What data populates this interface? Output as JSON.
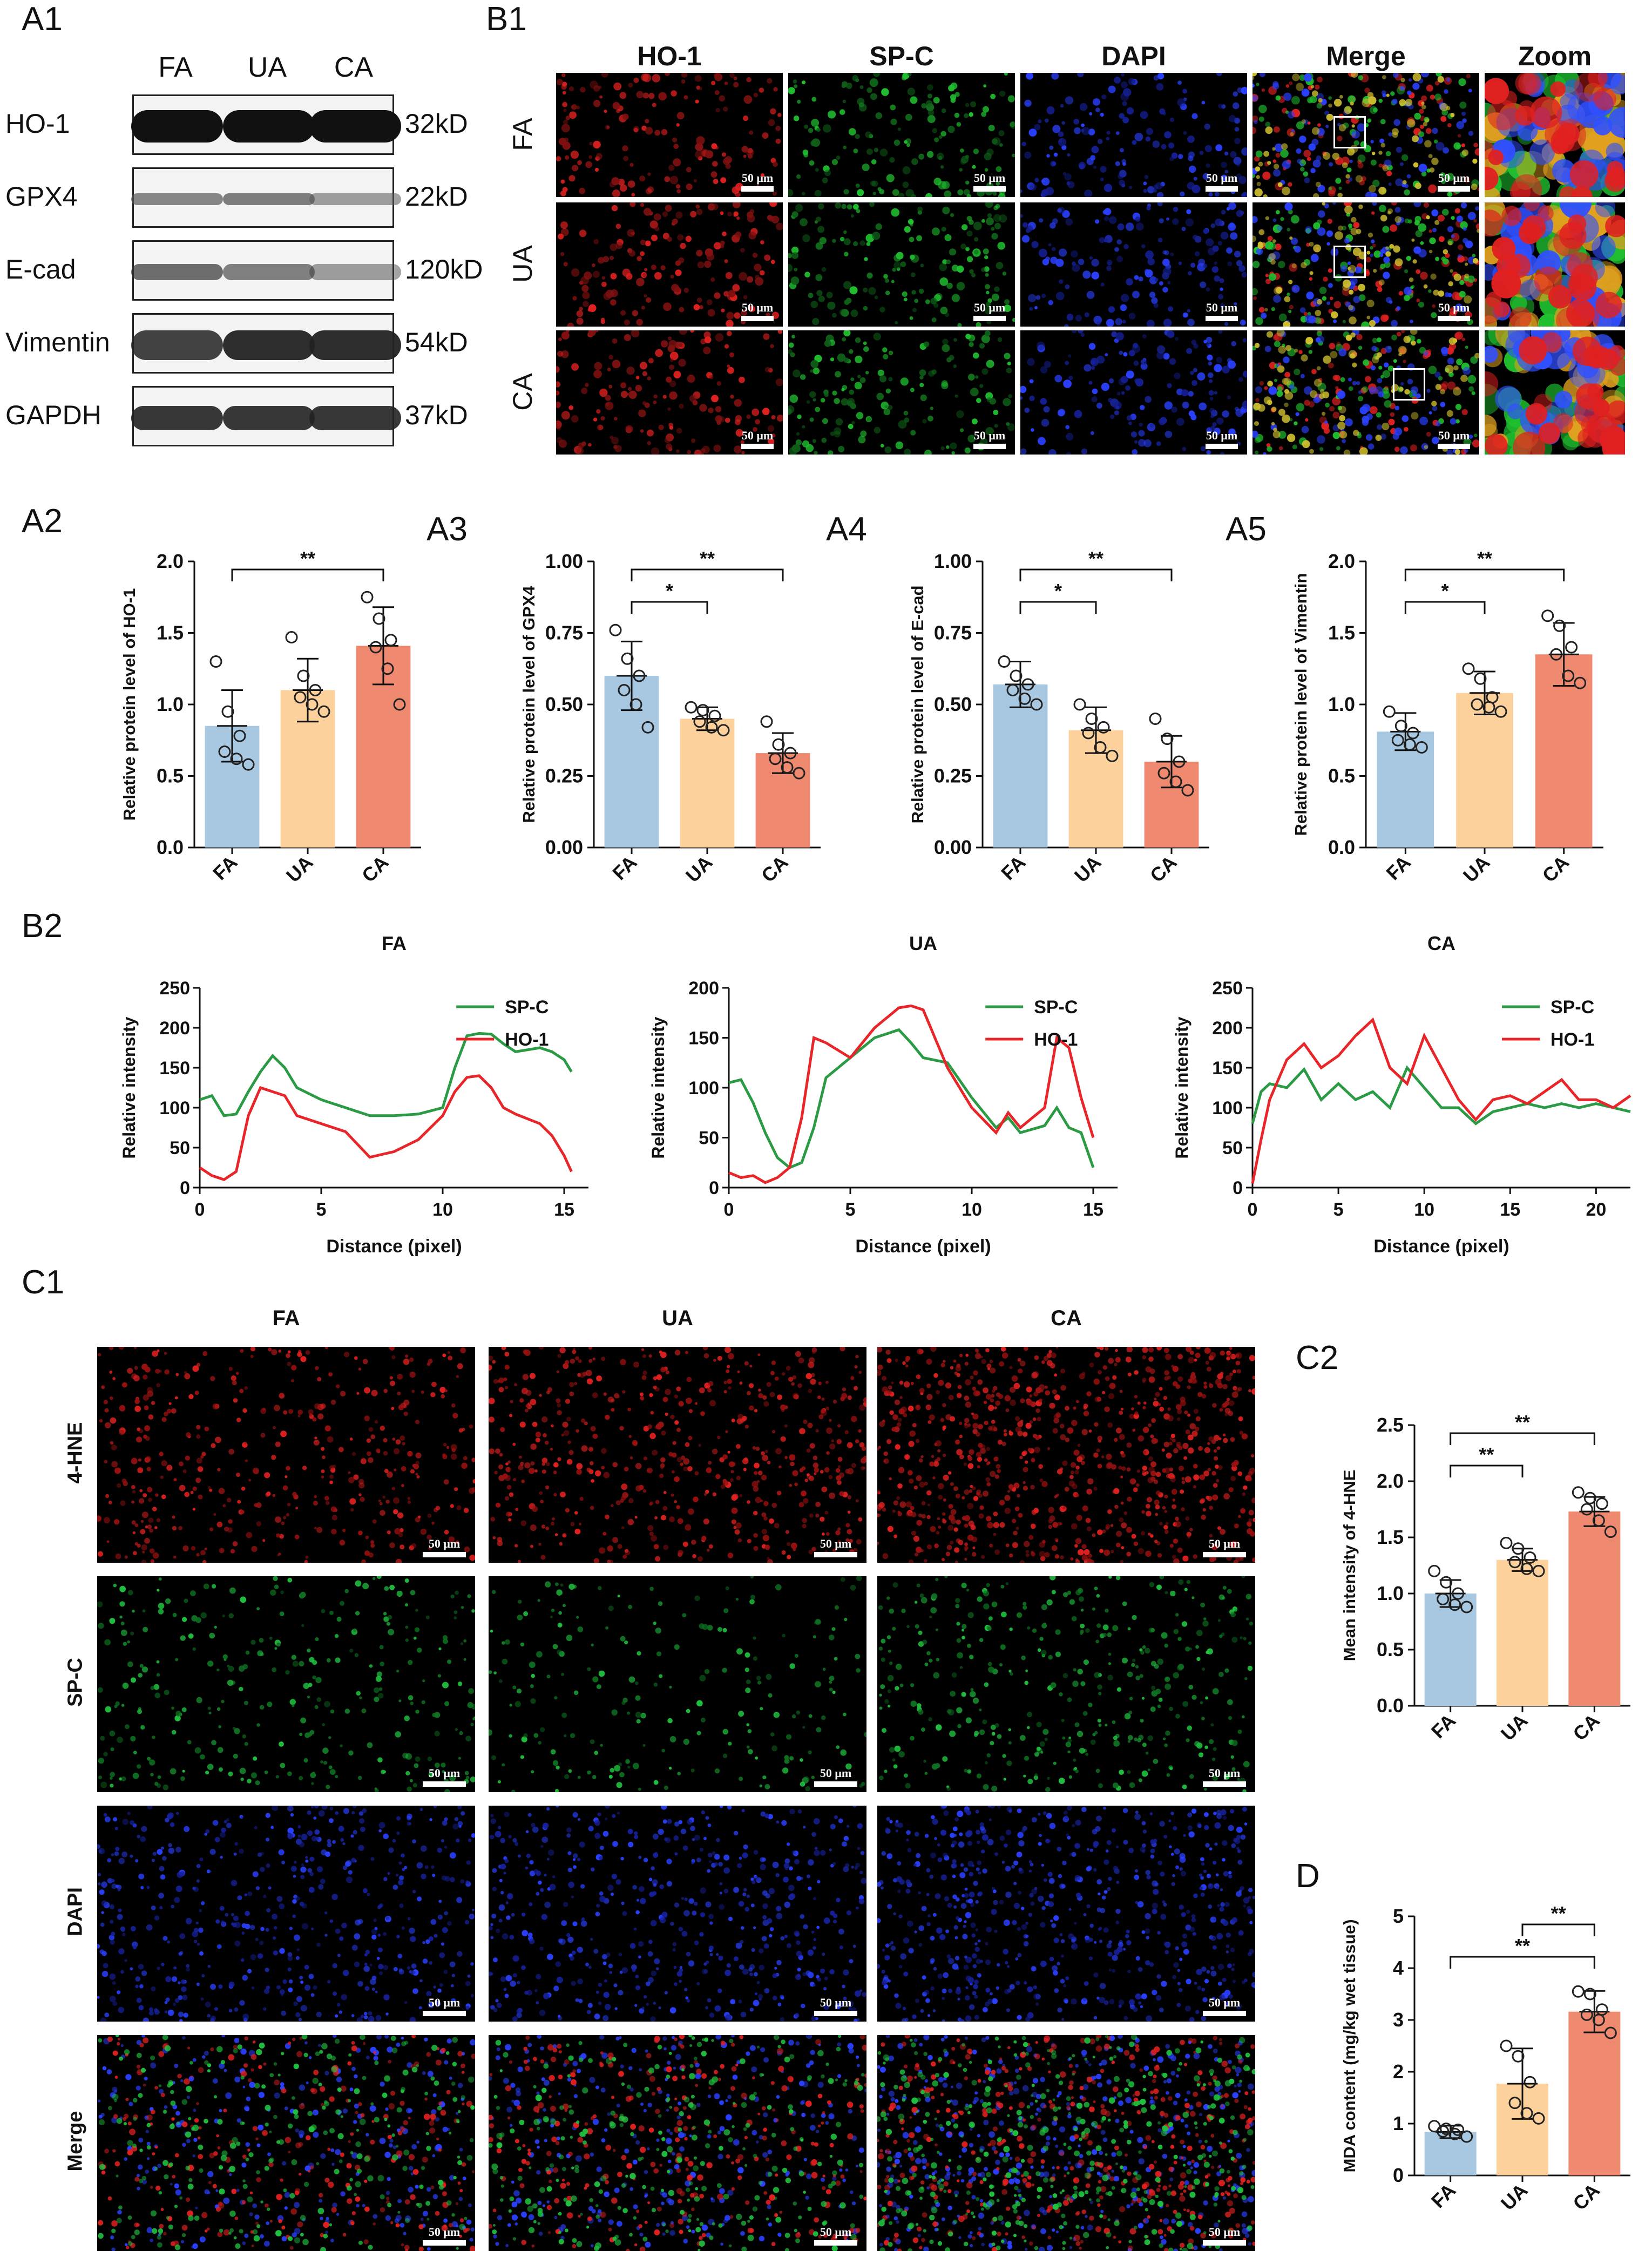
{
  "panel_labels": {
    "A1": "A1",
    "B1": "B1",
    "A2": "A2",
    "A3": "A3",
    "A4": "A4",
    "A5": "A5",
    "B2": "B2",
    "C1": "C1",
    "C2": "C2",
    "D": "D"
  },
  "western_blot": {
    "groups": [
      "FA",
      "UA",
      "CA"
    ],
    "rows": [
      {
        "protein": "HO-1",
        "kd": "32kD"
      },
      {
        "protein": "GPX4",
        "kd": "22kD"
      },
      {
        "protein": "E-cad",
        "kd": "120kD"
      },
      {
        "protein": "Vimentin",
        "kd": "54kD"
      },
      {
        "protein": "GAPDH",
        "kd": "37kD"
      }
    ]
  },
  "if_b1": {
    "columns": [
      "HO-1",
      "SP-C",
      "DAPI",
      "Merge",
      "Zoom"
    ],
    "rows": [
      "FA",
      "UA",
      "CA"
    ],
    "scale_label": "50 μm"
  },
  "if_c1": {
    "columns": [
      "FA",
      "UA",
      "CA"
    ],
    "rows": [
      "4-HNE",
      "SP-C",
      "DAPI",
      "Merge"
    ],
    "scale_label": "50 μm"
  },
  "colors": {
    "FA": "#a8c8e2",
    "UA": "#fcd19c",
    "CA": "#ef8a70",
    "SP-C": "#2b9a45",
    "HO-1": "#e8262a"
  },
  "chart_data": [
    {
      "id": "A2",
      "type": "bar",
      "categories": [
        "FA",
        "UA",
        "CA"
      ],
      "values": [
        0.85,
        1.1,
        1.41
      ],
      "errors": [
        0.25,
        0.22,
        0.27
      ],
      "points": [
        [
          1.3,
          0.95,
          0.78,
          0.67,
          0.62,
          0.58
        ],
        [
          1.47,
          1.2,
          1.1,
          1.05,
          1.0,
          0.95
        ],
        [
          1.75,
          1.6,
          1.45,
          1.4,
          1.25,
          1.0
        ]
      ],
      "ylabel": "Relative protein level of HO-1",
      "ylim": [
        0,
        2.0
      ],
      "yticks": [
        "0.0",
        "0.5",
        "1.0",
        "1.5",
        "2.0"
      ],
      "sig": [
        {
          "from": 0,
          "to": 2,
          "label": "**"
        }
      ]
    },
    {
      "id": "A3",
      "type": "bar",
      "categories": [
        "FA",
        "UA",
        "CA"
      ],
      "values": [
        0.6,
        0.45,
        0.33
      ],
      "errors": [
        0.12,
        0.04,
        0.07
      ],
      "points": [
        [
          0.76,
          0.66,
          0.6,
          0.55,
          0.5,
          0.42
        ],
        [
          0.49,
          0.48,
          0.46,
          0.44,
          0.42,
          0.41
        ],
        [
          0.44,
          0.36,
          0.33,
          0.31,
          0.28,
          0.26
        ]
      ],
      "ylabel": "Relative protein level of GPX4",
      "ylim": [
        0,
        1.0
      ],
      "yticks": [
        "0.00",
        "0.25",
        "0.50",
        "0.75",
        "1.00"
      ],
      "sig": [
        {
          "from": 0,
          "to": 1,
          "label": "*"
        },
        {
          "from": 0,
          "to": 2,
          "label": "**"
        }
      ]
    },
    {
      "id": "A4",
      "type": "bar",
      "categories": [
        "FA",
        "UA",
        "CA"
      ],
      "values": [
        0.57,
        0.41,
        0.3
      ],
      "errors": [
        0.08,
        0.08,
        0.09
      ],
      "points": [
        [
          0.65,
          0.6,
          0.57,
          0.55,
          0.52,
          0.5
        ],
        [
          0.5,
          0.45,
          0.42,
          0.4,
          0.35,
          0.32
        ],
        [
          0.45,
          0.38,
          0.3,
          0.26,
          0.23,
          0.2
        ]
      ],
      "ylabel": "Relative protein level of E-cad",
      "ylim": [
        0,
        1.0
      ],
      "yticks": [
        "0.00",
        "0.25",
        "0.50",
        "0.75",
        "1.00"
      ],
      "sig": [
        {
          "from": 0,
          "to": 1,
          "label": "*"
        },
        {
          "from": 0,
          "to": 2,
          "label": "**"
        }
      ]
    },
    {
      "id": "A5",
      "type": "bar",
      "categories": [
        "FA",
        "UA",
        "CA"
      ],
      "values": [
        0.81,
        1.08,
        1.35
      ],
      "errors": [
        0.13,
        0.15,
        0.22
      ],
      "points": [
        [
          0.95,
          0.85,
          0.8,
          0.75,
          0.72,
          0.7
        ],
        [
          1.25,
          1.18,
          1.05,
          1.0,
          0.98,
          0.95
        ],
        [
          1.62,
          1.55,
          1.4,
          1.35,
          1.2,
          1.15
        ]
      ],
      "ylabel": "Relative protein level of Vimentin",
      "ylim": [
        0,
        2.0
      ],
      "yticks": [
        "0.0",
        "0.5",
        "1.0",
        "1.5",
        "2.0"
      ],
      "sig": [
        {
          "from": 0,
          "to": 1,
          "label": "*"
        },
        {
          "from": 0,
          "to": 2,
          "label": "**"
        }
      ]
    },
    {
      "id": "B2-FA",
      "type": "line",
      "title": "FA",
      "xlabel": "Distance (pixel)",
      "ylabel": "Relative intensity",
      "xlim": [
        0,
        16
      ],
      "ylim": [
        0,
        250
      ],
      "xticks": [
        0,
        5,
        10,
        15
      ],
      "yticks": [
        0,
        50,
        100,
        150,
        200,
        250
      ],
      "series": [
        {
          "name": "SP-C",
          "x": [
            0,
            0.5,
            1,
            1.5,
            2,
            2.5,
            3,
            3.5,
            4,
            5,
            6,
            7,
            8,
            9,
            10,
            10.5,
            11,
            11.5,
            12,
            12.5,
            13,
            14,
            14.5,
            15,
            15.3
          ],
          "y": [
            110,
            115,
            90,
            92,
            120,
            145,
            165,
            150,
            125,
            110,
            100,
            90,
            90,
            92,
            100,
            150,
            190,
            193,
            192,
            180,
            170,
            175,
            170,
            160,
            145
          ]
        },
        {
          "name": "HO-1",
          "x": [
            0,
            0.5,
            1,
            1.5,
            2,
            2.5,
            3,
            3.5,
            4,
            5,
            6,
            7,
            8,
            9,
            10,
            10.5,
            11,
            11.5,
            12,
            12.5,
            13,
            14,
            14.5,
            15,
            15.3
          ],
          "y": [
            25,
            15,
            10,
            20,
            90,
            125,
            120,
            115,
            90,
            80,
            70,
            38,
            45,
            60,
            90,
            120,
            138,
            140,
            125,
            100,
            92,
            80,
            65,
            40,
            20
          ]
        }
      ]
    },
    {
      "id": "B2-UA",
      "type": "line",
      "title": "UA",
      "xlabel": "Distance (pixel)",
      "ylabel": "Relative intensity",
      "xlim": [
        0,
        16
      ],
      "ylim": [
        0,
        200
      ],
      "xticks": [
        0,
        5,
        10,
        15
      ],
      "yticks": [
        0,
        50,
        100,
        150,
        200
      ],
      "series": [
        {
          "name": "SP-C",
          "x": [
            0,
            0.5,
            1,
            1.5,
            2,
            2.5,
            3,
            3.5,
            4,
            5,
            6,
            7,
            7.5,
            8,
            9,
            10,
            11,
            11.5,
            12,
            13,
            13.5,
            14,
            14.5,
            15
          ],
          "y": [
            105,
            108,
            85,
            55,
            30,
            20,
            25,
            60,
            110,
            130,
            150,
            158,
            145,
            130,
            125,
            90,
            60,
            70,
            55,
            62,
            80,
            60,
            55,
            20
          ]
        },
        {
          "name": "HO-1",
          "x": [
            0,
            0.5,
            1,
            1.5,
            2,
            2.5,
            3,
            3.5,
            4,
            5,
            6,
            7,
            7.5,
            8,
            9,
            10,
            11,
            11.5,
            12,
            13,
            13.5,
            14,
            14.5,
            15
          ],
          "y": [
            15,
            10,
            12,
            5,
            10,
            20,
            70,
            150,
            145,
            130,
            160,
            180,
            182,
            178,
            120,
            80,
            55,
            75,
            60,
            80,
            150,
            140,
            90,
            50
          ]
        }
      ]
    },
    {
      "id": "B2-CA",
      "type": "line",
      "title": "CA",
      "xlabel": "Distance (pixel)",
      "ylabel": "Relative intensity",
      "xlim": [
        0,
        22
      ],
      "ylim": [
        0,
        250
      ],
      "xticks": [
        0,
        5,
        10,
        15,
        20
      ],
      "yticks": [
        0,
        50,
        100,
        150,
        200,
        250
      ],
      "series": [
        {
          "name": "SP-C",
          "x": [
            0,
            0.5,
            1,
            2,
            3,
            4,
            5,
            6,
            7,
            8,
            9,
            10,
            11,
            12,
            13,
            14,
            15,
            16,
            17,
            18,
            19,
            20,
            21,
            22
          ],
          "y": [
            80,
            120,
            130,
            125,
            148,
            110,
            130,
            110,
            120,
            100,
            150,
            125,
            100,
            100,
            80,
            95,
            100,
            105,
            100,
            105,
            100,
            105,
            100,
            95
          ]
        },
        {
          "name": "HO-1",
          "x": [
            0,
            0.5,
            1,
            2,
            3,
            4,
            5,
            6,
            7,
            8,
            9,
            10,
            11,
            12,
            13,
            14,
            15,
            16,
            17,
            18,
            19,
            20,
            21,
            22
          ],
          "y": [
            5,
            60,
            110,
            160,
            180,
            150,
            165,
            190,
            210,
            150,
            130,
            190,
            150,
            110,
            85,
            110,
            115,
            105,
            120,
            135,
            110,
            110,
            100,
            115
          ]
        }
      ]
    },
    {
      "id": "C2",
      "type": "bar",
      "categories": [
        "FA",
        "UA",
        "CA"
      ],
      "values": [
        1.0,
        1.3,
        1.73
      ],
      "errors": [
        0.12,
        0.1,
        0.13
      ],
      "points": [
        [
          1.2,
          1.1,
          1.0,
          0.95,
          0.9,
          0.88
        ],
        [
          1.45,
          1.4,
          1.32,
          1.28,
          1.22,
          1.2
        ],
        [
          1.9,
          1.85,
          1.8,
          1.75,
          1.65,
          1.55
        ]
      ],
      "ylabel": "Mean intensity of 4-HNE",
      "ylim": [
        0,
        2.5
      ],
      "yticks": [
        "0.0",
        "0.5",
        "1.0",
        "1.5",
        "2.0",
        "2.5"
      ],
      "sig": [
        {
          "from": 0,
          "to": 1,
          "label": "**"
        },
        {
          "from": 0,
          "to": 2,
          "label": "**"
        }
      ]
    },
    {
      "id": "D",
      "type": "bar",
      "categories": [
        "FA",
        "UA",
        "CA"
      ],
      "values": [
        0.84,
        1.77,
        3.16
      ],
      "errors": [
        0.12,
        0.68,
        0.4
      ],
      "points": [
        [
          0.95,
          0.9,
          0.88,
          0.85,
          0.8,
          0.75
        ],
        [
          2.5,
          2.3,
          1.8,
          1.4,
          1.2,
          1.1
        ],
        [
          3.55,
          3.5,
          3.2,
          3.1,
          3.0,
          2.75
        ]
      ],
      "ylabel": "MDA content (mg/kg wet tissue)",
      "ylim": [
        0,
        5
      ],
      "yticks": [
        "0",
        "1",
        "2",
        "3",
        "4",
        "5"
      ],
      "sig": [
        {
          "from": 0,
          "to": 2,
          "label": "**"
        },
        {
          "from": 1,
          "to": 2,
          "label": "**"
        }
      ]
    }
  ]
}
